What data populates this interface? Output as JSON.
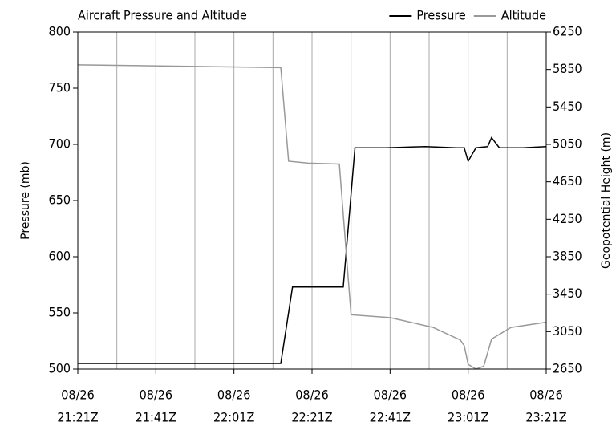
{
  "chart_data": {
    "type": "line",
    "title": "Aircraft Pressure and Altitude",
    "ylabel": "Pressure (mb)",
    "y2label": "Geopotential Height (m)",
    "xlim": [
      "21:21Z",
      "23:21Z"
    ],
    "xticks": [
      {
        "value": "21:21Z",
        "date": "08/26",
        "time": "21:21Z"
      },
      {
        "value": "21:41Z",
        "date": "08/26",
        "time": "21:41Z"
      },
      {
        "value": "22:01Z",
        "date": "08/26",
        "time": "22:01Z"
      },
      {
        "value": "22:21Z",
        "date": "08/26",
        "time": "22:21Z"
      },
      {
        "value": "22:41Z",
        "date": "08/26",
        "time": "22:41Z"
      },
      {
        "value": "23:01Z",
        "date": "08/26",
        "time": "23:01Z"
      },
      {
        "value": "23:21Z",
        "date": "08/26",
        "time": "23:21Z"
      }
    ],
    "xgrid": [
      "21:31Z",
      "21:41Z",
      "21:51Z",
      "22:01Z",
      "22:11Z",
      "22:21Z",
      "22:31Z",
      "22:41Z",
      "22:51Z",
      "23:01Z",
      "23:11Z"
    ],
    "ylim": [
      500,
      800
    ],
    "yticks": [
      500,
      550,
      600,
      650,
      700,
      750,
      800
    ],
    "y2lim": [
      2650,
      6250
    ],
    "y2ticks": [
      2650,
      3050,
      3450,
      3850,
      4250,
      4650,
      5050,
      5450,
      5850,
      6250
    ],
    "legend": "upper right",
    "series": [
      {
        "name": "Pressure",
        "color": "#000000",
        "x": [
          "21:21Z",
          "22:13Z",
          "22:16Z",
          "22:29Z",
          "22:32Z",
          "22:40Z",
          "22:50Z",
          "22:58Z",
          "23:00Z",
          "23:01Z",
          "23:03Z",
          "23:06Z",
          "23:07Z",
          "23:09Z",
          "23:15Z",
          "23:21Z"
        ],
        "values": [
          505,
          505,
          573,
          573,
          697,
          697,
          698,
          697,
          697,
          685,
          697,
          698,
          706,
          697,
          697,
          698
        ]
      },
      {
        "name": "Altitude",
        "color": "#999999",
        "axis": "y2",
        "x": [
          "21:21Z",
          "22:13Z",
          "22:15Z",
          "22:20Z",
          "22:28Z",
          "22:31Z",
          "22:41Z",
          "22:52Z",
          "22:59Z",
          "23:00Z",
          "23:01Z",
          "23:03Z",
          "23:05Z",
          "23:07Z",
          "23:12Z",
          "23:21Z"
        ],
        "values": [
          5900,
          5870,
          4870,
          4850,
          4840,
          3230,
          3200,
          3095,
          2960,
          2900,
          2700,
          2650,
          2680,
          2970,
          3095,
          3150
        ]
      }
    ]
  }
}
